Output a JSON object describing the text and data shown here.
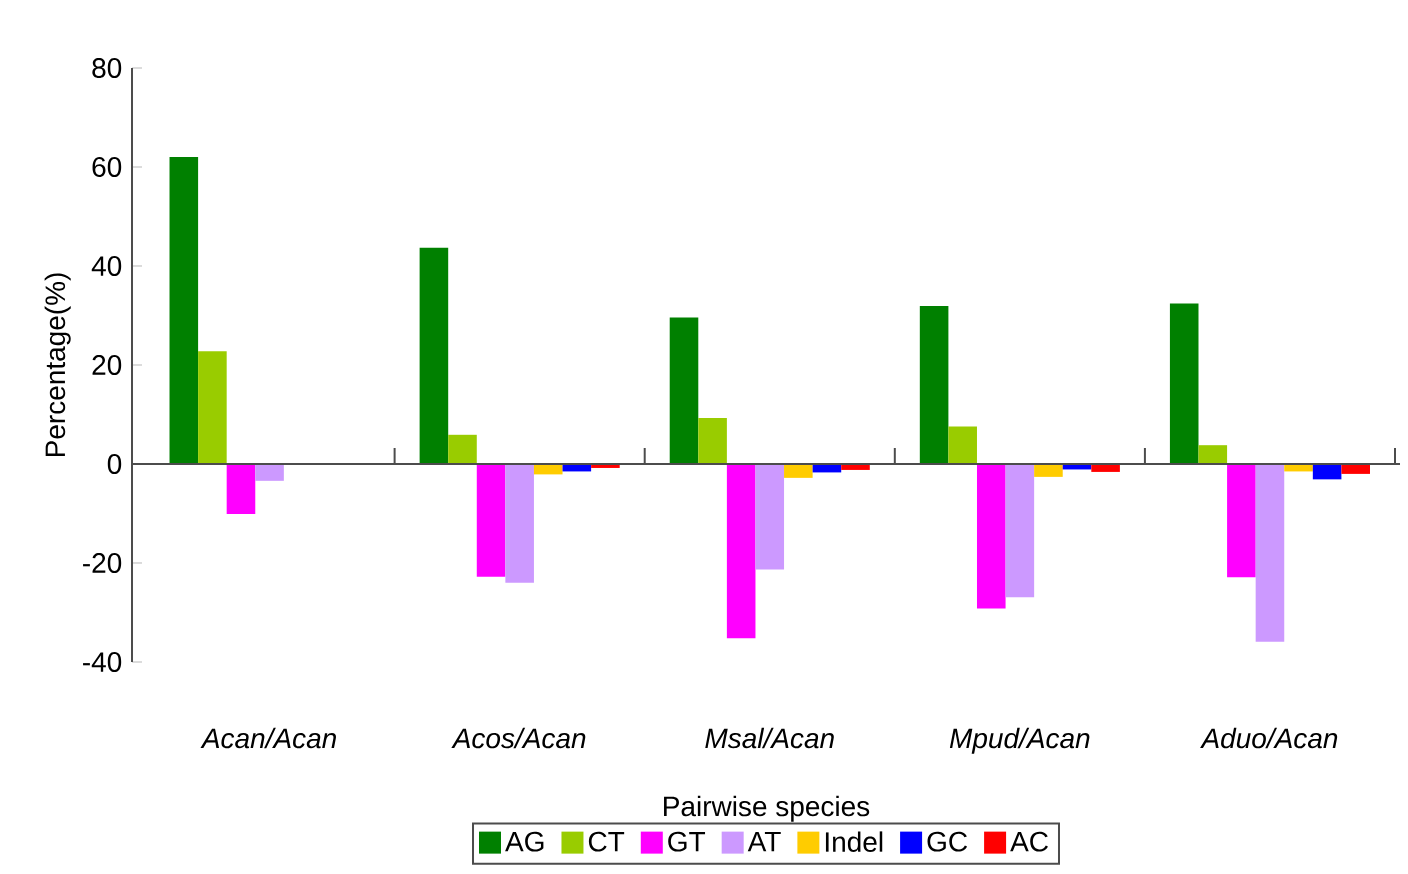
{
  "chart_data": {
    "type": "bar",
    "xlabel": "Pairwise species",
    "ylabel": "Percentage(%)",
    "categories": [
      "*Acan/Acan*",
      "*Acos/Acan*",
      "*Msal/Acan*",
      "*Mpud/Acan*",
      "*Aduo/Acan*"
    ],
    "series": [
      {
        "name": "AG",
        "color": "#008000",
        "values": [
          62,
          43.7,
          29.6,
          31.9,
          32.4
        ]
      },
      {
        "name": "CT",
        "color": "#99cc00",
        "values": [
          22.8,
          5.9,
          9.3,
          7.6,
          3.8
        ]
      },
      {
        "name": "GT",
        "color": "#ff00ff",
        "values": [
          -10.1,
          -22.8,
          -35.2,
          -29.2,
          -22.9
        ]
      },
      {
        "name": "AT",
        "color": "#cc99ff",
        "values": [
          -3.4,
          -24,
          -21.3,
          -26.9,
          -35.9
        ]
      },
      {
        "name": "Indel",
        "color": "#ffcc00",
        "values": [
          0,
          -2.1,
          -2.8,
          -2.6,
          -1.5
        ]
      },
      {
        "name": "GC",
        "color": "#0000ff",
        "values": [
          0,
          -1.5,
          -1.7,
          -1.1,
          -3.1
        ]
      },
      {
        "name": "AC",
        "color": "#ff0000",
        "values": [
          0,
          -0.8,
          -1.2,
          -1.6,
          -2.0
        ]
      }
    ],
    "ylim": [
      -40,
      80
    ],
    "yticks": [
      -40,
      -20,
      0,
      20,
      40,
      60,
      80
    ],
    "legend": "bottom"
  }
}
